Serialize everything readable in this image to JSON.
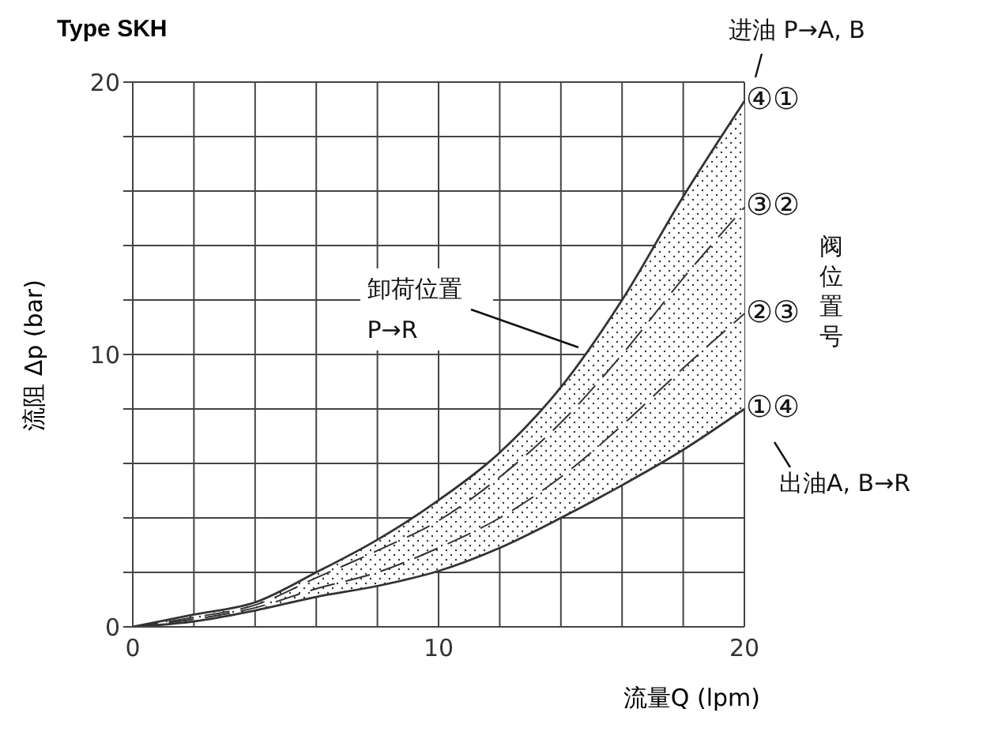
{
  "chart_data": {
    "type": "line",
    "title": "Type SKH",
    "xlabel": "流量Q (lpm)",
    "ylabel": "流阻 Δp (bar)",
    "x": [
      0,
      2,
      4,
      6,
      8,
      10,
      12,
      14,
      16,
      18,
      20
    ],
    "series": [
      {
        "color": "#333333",
        "line_style": "solid",
        "values": [
          0,
          0.45,
          0.9,
          2.0,
          3.2,
          4.65,
          6.4,
          8.8,
          12.0,
          15.8,
          19.3
        ]
      },
      {
        "color": "#333333",
        "line_style": "dashed",
        "values": [
          0,
          0.35,
          0.8,
          1.8,
          2.8,
          3.9,
          5.5,
          7.5,
          10.0,
          12.8,
          15.4
        ],
        "lower": [
          0,
          0.2,
          0.6,
          1.1,
          1.5,
          2.05,
          2.9,
          4.0,
          5.2,
          6.5,
          8.0
        ],
        "upper": [
          0,
          0.45,
          0.9,
          2.0,
          3.2,
          4.65,
          6.4,
          8.8,
          12.0,
          15.8,
          19.3
        ]
      },
      {
        "color": "#333333",
        "line_style": "dashed",
        "values": [
          0,
          0.28,
          0.7,
          1.4,
          2.0,
          2.9,
          4.0,
          5.5,
          7.4,
          9.5,
          11.5
        ]
      },
      {
        "color": "#333333",
        "line_style": "solid",
        "values": [
          0,
          0.2,
          0.6,
          1.1,
          1.5,
          2.05,
          2.9,
          4.0,
          5.2,
          6.5,
          8.0
        ]
      }
    ],
    "xlim": [
      0,
      20
    ],
    "ylim": [
      0,
      20
    ],
    "xticks": [
      0,
      {
        "value": 2,
        "label": null
      },
      {
        "value": 4,
        "label": null
      },
      {
        "value": 6,
        "label": null
      },
      {
        "value": 8,
        "label": null
      },
      10,
      {
        "value": 12,
        "label": null
      },
      {
        "value": 14,
        "label": null
      },
      {
        "value": 16,
        "label": null
      },
      {
        "value": 18,
        "label": null
      },
      20
    ],
    "yticks": [
      0,
      {
        "value": 2,
        "label": null
      },
      {
        "value": 4,
        "label": null
      },
      {
        "value": 6,
        "label": null
      },
      {
        "value": 8,
        "label": null
      },
      10,
      {
        "value": 12,
        "label": null
      },
      {
        "value": 14,
        "label": null
      },
      {
        "value": 16,
        "label": null
      },
      {
        "value": 18,
        "label": null
      },
      20
    ],
    "grid": true,
    "legend": false,
    "marker": "none",
    "annotations": [
      "卸荷位置\nP→R",
      "进油 P→A, B",
      "出油A, B→R",
      "④①",
      "③②",
      "②③",
      "①④",
      "阀位置号"
    ]
  }
}
